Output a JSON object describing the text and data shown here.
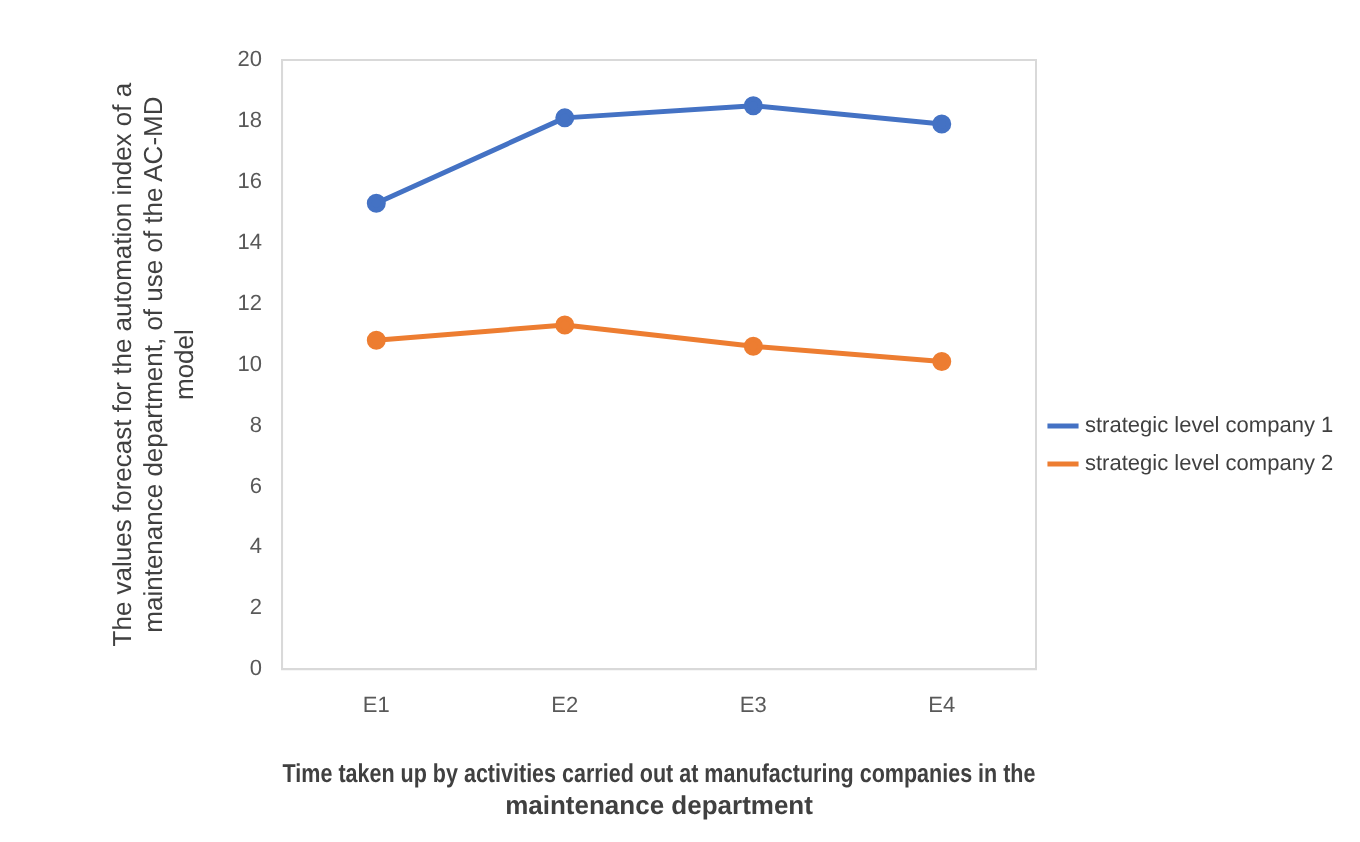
{
  "chart_data": {
    "type": "line",
    "xlabel": "Time taken up by activities carried out at manufacturing companies in the maintenance department",
    "ylabel": "The values forecast for the automation index of a maintenance department, of use of the AC-MD model",
    "categories": [
      "E1",
      "E2",
      "E3",
      "E4"
    ],
    "series": [
      {
        "name": "strategic level company 1",
        "color": "#4472c4",
        "values": [
          15.3,
          18.1,
          18.5,
          17.9
        ]
      },
      {
        "name": "strategic level company 2",
        "color": "#ed7d31",
        "values": [
          10.8,
          11.3,
          10.6,
          10.1
        ]
      }
    ],
    "ylim": [
      0,
      20
    ],
    "yticks": [
      0,
      2,
      4,
      6,
      8,
      10,
      12,
      14,
      16,
      18,
      20
    ],
    "grid": false,
    "legend": "right",
    "marker": "circle",
    "line_style": "solid"
  }
}
